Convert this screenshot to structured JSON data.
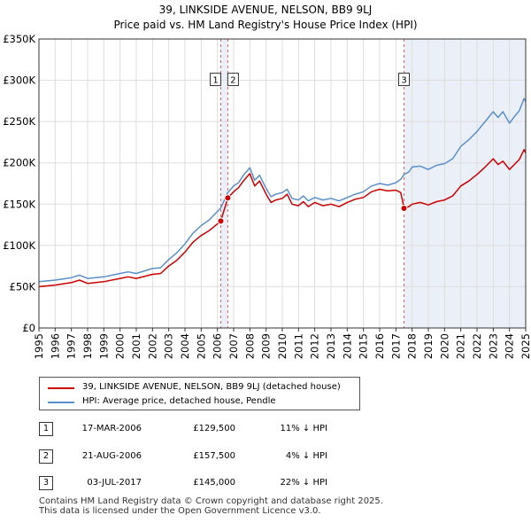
{
  "title_line1": "39, LINKSIDE AVENUE, NELSON, BB9 9LJ",
  "title_line2": "Price paid vs. HM Land Registry's House Price Index (HPI)",
  "chart_data": {
    "type": "line",
    "title": "39, LINKSIDE AVENUE, NELSON, BB9 9LJ — Price paid vs. HM Land Registry's House Price Index (HPI)",
    "xlabel": "",
    "ylabel": "",
    "xlim": [
      1995,
      2025
    ],
    "ylim": [
      0,
      350000
    ],
    "x_ticks": [
      "1995",
      "1996",
      "1997",
      "1998",
      "1999",
      "2000",
      "2001",
      "2002",
      "2003",
      "2004",
      "2005",
      "2006",
      "2007",
      "2008",
      "2009",
      "2010",
      "2011",
      "2012",
      "2013",
      "2014",
      "2015",
      "2016",
      "2017",
      "2018",
      "2019",
      "2020",
      "2021",
      "2022",
      "2023",
      "2024",
      "2025"
    ],
    "y_ticks": [
      {
        "value": 0,
        "label": "£0"
      },
      {
        "value": 50000,
        "label": "£50K"
      },
      {
        "value": 100000,
        "label": "£100K"
      },
      {
        "value": 150000,
        "label": "£150K"
      },
      {
        "value": 200000,
        "label": "£200K"
      },
      {
        "value": 250000,
        "label": "£250K"
      },
      {
        "value": 300000,
        "label": "£300K"
      },
      {
        "value": 350000,
        "label": "£350K"
      }
    ],
    "grid": true,
    "purchase_shading": "2017-2025",
    "series": [
      {
        "name": "39, LINKSIDE AVENUE, NELSON, BB9 9LJ (detached house)",
        "color": "#cc0000",
        "points": [
          [
            1995.0,
            50000
          ],
          [
            1996.0,
            52000
          ],
          [
            1997.0,
            55000
          ],
          [
            1997.5,
            58000
          ],
          [
            1998.0,
            54000
          ],
          [
            1999.0,
            56000
          ],
          [
            2000.0,
            60000
          ],
          [
            2000.5,
            62000
          ],
          [
            2001.0,
            60000
          ],
          [
            2002.0,
            65000
          ],
          [
            2002.5,
            66000
          ],
          [
            2003.0,
            75000
          ],
          [
            2003.5,
            82000
          ],
          [
            2004.0,
            92000
          ],
          [
            2004.5,
            104000
          ],
          [
            2005.0,
            112000
          ],
          [
            2005.5,
            118000
          ],
          [
            2006.21,
            129500
          ],
          [
            2006.64,
            157500
          ],
          [
            2007.0,
            165000
          ],
          [
            2007.3,
            170000
          ],
          [
            2007.6,
            178000
          ],
          [
            2008.0,
            187000
          ],
          [
            2008.3,
            172000
          ],
          [
            2008.6,
            178000
          ],
          [
            2009.0,
            162000
          ],
          [
            2009.3,
            152000
          ],
          [
            2009.6,
            155000
          ],
          [
            2010.0,
            157000
          ],
          [
            2010.3,
            162000
          ],
          [
            2010.6,
            150000
          ],
          [
            2011.0,
            148000
          ],
          [
            2011.3,
            153000
          ],
          [
            2011.6,
            147000
          ],
          [
            2012.0,
            152000
          ],
          [
            2012.5,
            148000
          ],
          [
            2013.0,
            150000
          ],
          [
            2013.5,
            147000
          ],
          [
            2014.0,
            152000
          ],
          [
            2014.5,
            156000
          ],
          [
            2015.0,
            158000
          ],
          [
            2015.5,
            165000
          ],
          [
            2016.0,
            168000
          ],
          [
            2016.5,
            166000
          ],
          [
            2017.0,
            167000
          ],
          [
            2017.3,
            164000
          ],
          [
            2017.45,
            150000
          ],
          [
            2017.5,
            145000
          ],
          [
            2017.8,
            147000
          ],
          [
            2018.0,
            150000
          ],
          [
            2018.5,
            152000
          ],
          [
            2019.0,
            149000
          ],
          [
            2019.5,
            153000
          ],
          [
            2020.0,
            155000
          ],
          [
            2020.5,
            160000
          ],
          [
            2021.0,
            172000
          ],
          [
            2021.5,
            178000
          ],
          [
            2022.0,
            186000
          ],
          [
            2022.5,
            195000
          ],
          [
            2023.0,
            205000
          ],
          [
            2023.3,
            198000
          ],
          [
            2023.6,
            202000
          ],
          [
            2024.0,
            192000
          ],
          [
            2024.3,
            198000
          ],
          [
            2024.6,
            204000
          ],
          [
            2024.9,
            216000
          ],
          [
            2025.0,
            212000
          ]
        ]
      },
      {
        "name": "HPI: Average price, detached house, Pendle",
        "color": "#5b8fc9",
        "points": [
          [
            1995.0,
            56000
          ],
          [
            1996.0,
            58000
          ],
          [
            1997.0,
            61000
          ],
          [
            1997.5,
            64000
          ],
          [
            1998.0,
            60000
          ],
          [
            1999.0,
            62000
          ],
          [
            2000.0,
            66000
          ],
          [
            2000.5,
            68000
          ],
          [
            2001.0,
            66000
          ],
          [
            2002.0,
            72000
          ],
          [
            2002.5,
            73000
          ],
          [
            2003.0,
            83000
          ],
          [
            2003.5,
            91000
          ],
          [
            2004.0,
            102000
          ],
          [
            2004.5,
            115000
          ],
          [
            2005.0,
            124000
          ],
          [
            2005.5,
            131000
          ],
          [
            2006.21,
            145500
          ],
          [
            2006.64,
            164000
          ],
          [
            2007.0,
            172000
          ],
          [
            2007.3,
            176000
          ],
          [
            2007.6,
            185000
          ],
          [
            2008.0,
            194000
          ],
          [
            2008.3,
            179000
          ],
          [
            2008.6,
            185000
          ],
          [
            2009.0,
            169000
          ],
          [
            2009.3,
            159000
          ],
          [
            2009.6,
            162000
          ],
          [
            2010.0,
            164000
          ],
          [
            2010.3,
            168000
          ],
          [
            2010.6,
            157000
          ],
          [
            2011.0,
            155000
          ],
          [
            2011.3,
            160000
          ],
          [
            2011.6,
            154000
          ],
          [
            2012.0,
            158000
          ],
          [
            2012.5,
            155000
          ],
          [
            2013.0,
            157000
          ],
          [
            2013.5,
            154000
          ],
          [
            2014.0,
            158000
          ],
          [
            2014.5,
            162000
          ],
          [
            2015.0,
            165000
          ],
          [
            2015.5,
            172000
          ],
          [
            2016.0,
            175000
          ],
          [
            2016.5,
            173000
          ],
          [
            2017.0,
            176000
          ],
          [
            2017.3,
            180000
          ],
          [
            2017.5,
            186000
          ],
          [
            2017.8,
            189000
          ],
          [
            2018.0,
            195000
          ],
          [
            2018.5,
            196000
          ],
          [
            2019.0,
            192000
          ],
          [
            2019.5,
            197000
          ],
          [
            2020.0,
            199000
          ],
          [
            2020.5,
            205000
          ],
          [
            2021.0,
            220000
          ],
          [
            2021.5,
            228000
          ],
          [
            2022.0,
            238000
          ],
          [
            2022.5,
            250000
          ],
          [
            2023.0,
            262000
          ],
          [
            2023.3,
            255000
          ],
          [
            2023.6,
            262000
          ],
          [
            2024.0,
            248000
          ],
          [
            2024.3,
            256000
          ],
          [
            2024.6,
            263000
          ],
          [
            2024.9,
            278000
          ],
          [
            2025.0,
            274000
          ]
        ]
      }
    ],
    "annotations": [
      {
        "label": "1",
        "x": 2006.21,
        "y": 129500
      },
      {
        "label": "2",
        "x": 2006.64,
        "y": 157500
      },
      {
        "label": "3",
        "x": 2017.5,
        "y": 145000
      }
    ]
  },
  "legend": {
    "items": [
      {
        "label": "39, LINKSIDE AVENUE, NELSON, BB9 9LJ (detached house)",
        "color": "#cc0000"
      },
      {
        "label": "HPI: Average price, detached house, Pendle",
        "color": "#5b8fc9"
      }
    ]
  },
  "sales": [
    {
      "num": "1",
      "date": "17-MAR-2006",
      "price": "£129,500",
      "hpi": "11% ↓ HPI"
    },
    {
      "num": "2",
      "date": "21-AUG-2006",
      "price": "£157,500",
      "hpi": "4% ↓ HPI"
    },
    {
      "num": "3",
      "date": "03-JUL-2017",
      "price": "£145,000",
      "hpi": "22% ↓ HPI"
    }
  ],
  "footer": {
    "line1": "Contains HM Land Registry data © Crown copyright and database right 2025.",
    "line2": "This data is licensed under the Open Government Licence v3.0."
  }
}
